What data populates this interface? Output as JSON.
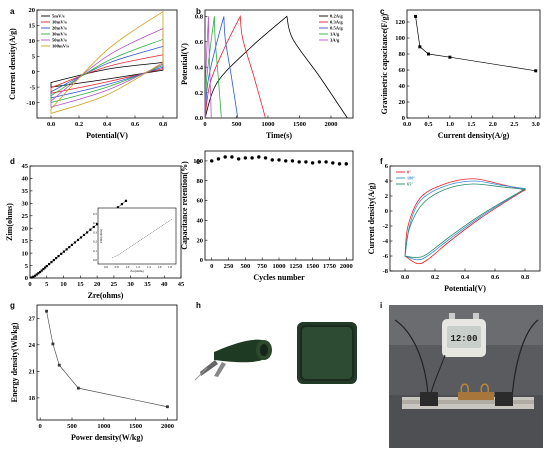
{
  "chart_data": [
    {
      "panel": "a",
      "type": "line",
      "xlabel": "Potential(V)",
      "ylabel": "Current density(A/g)",
      "xlim": [
        -0.1,
        0.9
      ],
      "ylim": [
        -15,
        20
      ],
      "xticks": [
        "0.0",
        "0.2",
        "0.4",
        "0.6",
        "0.8"
      ],
      "yticks": [
        "-10",
        "-5",
        "0",
        "5",
        "10",
        "15",
        "20"
      ],
      "legend_position": "top-left",
      "series": [
        {
          "name": "5mV/s",
          "color": "#000000",
          "upper": [
            [
              0,
              -3.5
            ],
            [
              0.4,
              0.8
            ],
            [
              0.8,
              3
            ]
          ],
          "lower": [
            [
              0,
              -5
            ],
            [
              0.4,
              -2.4
            ],
            [
              0.8,
              0.5
            ]
          ]
        },
        {
          "name": "10mV/s",
          "color": "#e8202a",
          "upper": [
            [
              0,
              -5.2
            ],
            [
              0.4,
              1.6
            ],
            [
              0.8,
              5.5
            ]
          ],
          "lower": [
            [
              0,
              -7
            ],
            [
              0.4,
              -3.3
            ],
            [
              0.8,
              1
            ]
          ]
        },
        {
          "name": "20mV/s",
          "color": "#2c55d8",
          "upper": [
            [
              0,
              -6.5
            ],
            [
              0.4,
              2.6
            ],
            [
              0.8,
              8.2
            ]
          ],
          "lower": [
            [
              0,
              -8.5
            ],
            [
              0.4,
              -4.2
            ],
            [
              0.8,
              1.5
            ]
          ]
        },
        {
          "name": "30mV/s",
          "color": "#2fae3d",
          "upper": [
            [
              0,
              -7.8
            ],
            [
              0.4,
              3.4
            ],
            [
              0.8,
              10.5
            ]
          ],
          "lower": [
            [
              0,
              -10
            ],
            [
              0.4,
              -5
            ],
            [
              0.8,
              2
            ]
          ]
        },
        {
          "name": "50mV/s",
          "color": "#b94fd0",
          "upper": [
            [
              0,
              -9.5
            ],
            [
              0.4,
              5
            ],
            [
              0.8,
              14
            ]
          ],
          "lower": [
            [
              0,
              -11.5
            ],
            [
              0.4,
              -6
            ],
            [
              0.8,
              2.5
            ]
          ]
        },
        {
          "name": "100mV/s",
          "color": "#c8a31a",
          "upper": [
            [
              0,
              -12
            ],
            [
              0.4,
              7
            ],
            [
              0.8,
              19.5
            ]
          ],
          "lower": [
            [
              0,
              -13.5
            ],
            [
              0.4,
              -7.5
            ],
            [
              0.8,
              3
            ]
          ]
        }
      ]
    },
    {
      "panel": "b",
      "type": "line",
      "xlabel": "Time(s)",
      "ylabel": "Potential(V)",
      "xlim": [
        0,
        2350
      ],
      "ylim": [
        0,
        0.85
      ],
      "xticks": [
        "0",
        "500",
        "1000",
        "1500",
        "2000"
      ],
      "yticks": [
        "0.0",
        "0.2",
        "0.4",
        "0.6",
        "0.8"
      ],
      "legend_position": "top-right",
      "series": [
        {
          "name": "0.2A/g",
          "color": "#000000",
          "charge_end_s": 1300,
          "discharge_end_s": 2260
        },
        {
          "name": "0.3A/g",
          "color": "#e8202a",
          "charge_end_s": 560,
          "discharge_end_s": 960
        },
        {
          "name": "0.5A/g",
          "color": "#2c55d8",
          "charge_end_s": 300,
          "discharge_end_s": 520
        },
        {
          "name": "1A/g",
          "color": "#2fae3d",
          "charge_end_s": 150,
          "discharge_end_s": 260
        },
        {
          "name": "3A/g",
          "color": "#b94fd0",
          "charge_end_s": 55,
          "discharge_end_s": 100
        }
      ]
    },
    {
      "panel": "c",
      "type": "line",
      "xlabel": "Current density(A/g)",
      "ylabel": "Gravimetric capacitance(F/g)",
      "xlim": [
        0,
        3.1
      ],
      "ylim": [
        0,
        135
      ],
      "xticks": [
        "0.0",
        "0.5",
        "1.0",
        "1.5",
        "2.0",
        "2.5",
        "3.0"
      ],
      "yticks": [
        "0",
        "20",
        "40",
        "60",
        "80",
        "100",
        "120"
      ],
      "x": [
        0.2,
        0.3,
        0.5,
        1.0,
        3.0
      ],
      "y": [
        127,
        89,
        80,
        76,
        59
      ]
    },
    {
      "panel": "d",
      "type": "scatter",
      "xlabel": "Zre(ohms)",
      "ylabel": "Zim(ohms)",
      "xlim": [
        0,
        45
      ],
      "ylim": [
        0,
        45
      ],
      "xticks": [
        "0",
        "5",
        "10",
        "15",
        "20",
        "25",
        "30",
        "35",
        "40",
        "45"
      ],
      "yticks": [
        "0",
        "5",
        "10",
        "15",
        "20",
        "25",
        "30",
        "35",
        "40",
        "45"
      ],
      "inset_xlabel": "Zre(ohms)",
      "inset_ylabel": "Zim(ohms)",
      "inset_xticks": [
        "0.6",
        "0.8",
        "1.0",
        "1.2",
        "1.4",
        "1.6",
        "1.8"
      ],
      "inset_yticks": [
        "0.5",
        "0.4",
        "0.3",
        "0.2",
        "0.1",
        "0.0"
      ],
      "x": [
        0.5,
        1,
        1.5,
        2,
        2.5,
        3,
        3.5,
        4,
        4.5,
        5,
        5.7,
        6.4,
        7.1,
        7.8,
        8.5,
        9.3,
        10.1,
        10.9,
        11.7,
        12.5,
        13.4,
        14.3,
        15.2,
        16.1,
        17,
        18,
        19,
        20,
        21,
        22,
        23,
        24,
        25.1,
        26.2,
        27.4,
        28.6
      ],
      "y": [
        0.2,
        0.5,
        0.9,
        1.4,
        1.9,
        2.4,
        3,
        3.6,
        4.2,
        4.8,
        5.6,
        6.4,
        7.2,
        8,
        8.8,
        9.7,
        10.6,
        11.5,
        12.4,
        13.3,
        14.3,
        15.3,
        16.3,
        17.3,
        18.3,
        19.4,
        20.5,
        21.6,
        22.7,
        23.8,
        24.9,
        26,
        27.2,
        28.4,
        29.7,
        31
      ]
    },
    {
      "panel": "e",
      "type": "scatter",
      "xlabel": "Cycles number",
      "ylabel": "Capacitance retention(%)",
      "xlim": [
        -100,
        2100
      ],
      "ylim": [
        0,
        110
      ],
      "xticks": [
        "0",
        "250",
        "500",
        "750",
        "1000",
        "1250",
        "1500",
        "1750",
        "2000"
      ],
      "yticks": [
        "0",
        "20",
        "40",
        "60",
        "80",
        "100"
      ],
      "x": [
        0,
        100,
        200,
        300,
        400,
        500,
        600,
        700,
        800,
        900,
        1000,
        1100,
        1200,
        1300,
        1400,
        1500,
        1600,
        1700,
        1800,
        1900,
        2000
      ],
      "y": [
        100,
        102,
        104,
        104,
        102,
        103,
        103,
        104,
        103,
        101,
        101,
        100,
        100,
        99,
        99,
        98,
        99,
        99,
        98,
        97,
        97
      ]
    },
    {
      "panel": "f",
      "type": "line",
      "xlabel": "Potential(V)",
      "ylabel": "Current density(A/g)",
      "xlim": [
        -0.1,
        0.9
      ],
      "ylim": [
        -8,
        6
      ],
      "xticks": [
        "0.0",
        "0.2",
        "0.4",
        "0.6",
        "0.8"
      ],
      "yticks": [
        "-8",
        "-6",
        "-4",
        "-2",
        "0",
        "2",
        "4",
        "6"
      ],
      "legend_position": "top-left",
      "series": [
        {
          "name": "0°",
          "color": "#e8202a",
          "upper": [
            [
              0,
              -6
            ],
            [
              0.02,
              -2
            ],
            [
              0.1,
              1.7
            ],
            [
              0.25,
              3.5
            ],
            [
              0.45,
              4.3
            ],
            [
              0.65,
              3.5
            ],
            [
              0.8,
              2.8
            ]
          ],
          "lower": [
            [
              0,
              -6
            ],
            [
              0.08,
              -7
            ],
            [
              0.15,
              -6.5
            ],
            [
              0.3,
              -4
            ],
            [
              0.5,
              -1
            ],
            [
              0.7,
              1.6
            ],
            [
              0.8,
              2.8
            ]
          ]
        },
        {
          "name": "180°",
          "color": "#3a8fd6",
          "upper": [
            [
              0,
              -6
            ],
            [
              0.03,
              -2
            ],
            [
              0.1,
              1.3
            ],
            [
              0.25,
              3.2
            ],
            [
              0.45,
              4
            ],
            [
              0.65,
              3.4
            ],
            [
              0.8,
              3
            ]
          ],
          "lower": [
            [
              0,
              -6
            ],
            [
              0.08,
              -6.5
            ],
            [
              0.15,
              -6
            ],
            [
              0.3,
              -3.7
            ],
            [
              0.5,
              -0.8
            ],
            [
              0.7,
              1.7
            ],
            [
              0.8,
              3
            ]
          ]
        },
        {
          "name": "65°",
          "color": "#2a8c6e",
          "upper": [
            [
              0,
              -6
            ],
            [
              0.03,
              -2.3
            ],
            [
              0.12,
              1
            ],
            [
              0.27,
              2.9
            ],
            [
              0.45,
              3.6
            ],
            [
              0.65,
              3.2
            ],
            [
              0.8,
              2.9
            ]
          ],
          "lower": [
            [
              0,
              -6
            ],
            [
              0.08,
              -6.2
            ],
            [
              0.15,
              -5.7
            ],
            [
              0.3,
              -3.4
            ],
            [
              0.5,
              -0.6
            ],
            [
              0.7,
              1.8
            ],
            [
              0.8,
              2.9
            ]
          ]
        }
      ]
    },
    {
      "panel": "g",
      "type": "line",
      "xlabel": "Power density(W/kg)",
      "ylabel": "Energy density(Wh/kg)",
      "xlim": [
        -50,
        2150
      ],
      "ylim": [
        15.5,
        28.5
      ],
      "xticks": [
        "0",
        "500",
        "1000",
        "1500",
        "2000"
      ],
      "yticks": [
        "18",
        "21",
        "24",
        "27"
      ],
      "x": [
        100,
        200,
        300,
        600,
        2000
      ],
      "y": [
        27.8,
        24.1,
        21.7,
        19.1,
        17.0
      ]
    }
  ],
  "panels": {
    "a": "a",
    "b": "b",
    "c": "c",
    "d": "d",
    "e": "e",
    "f": "f",
    "g": "g",
    "h": "h",
    "i": "i"
  },
  "photo_i": {
    "display_text": "12:00"
  }
}
